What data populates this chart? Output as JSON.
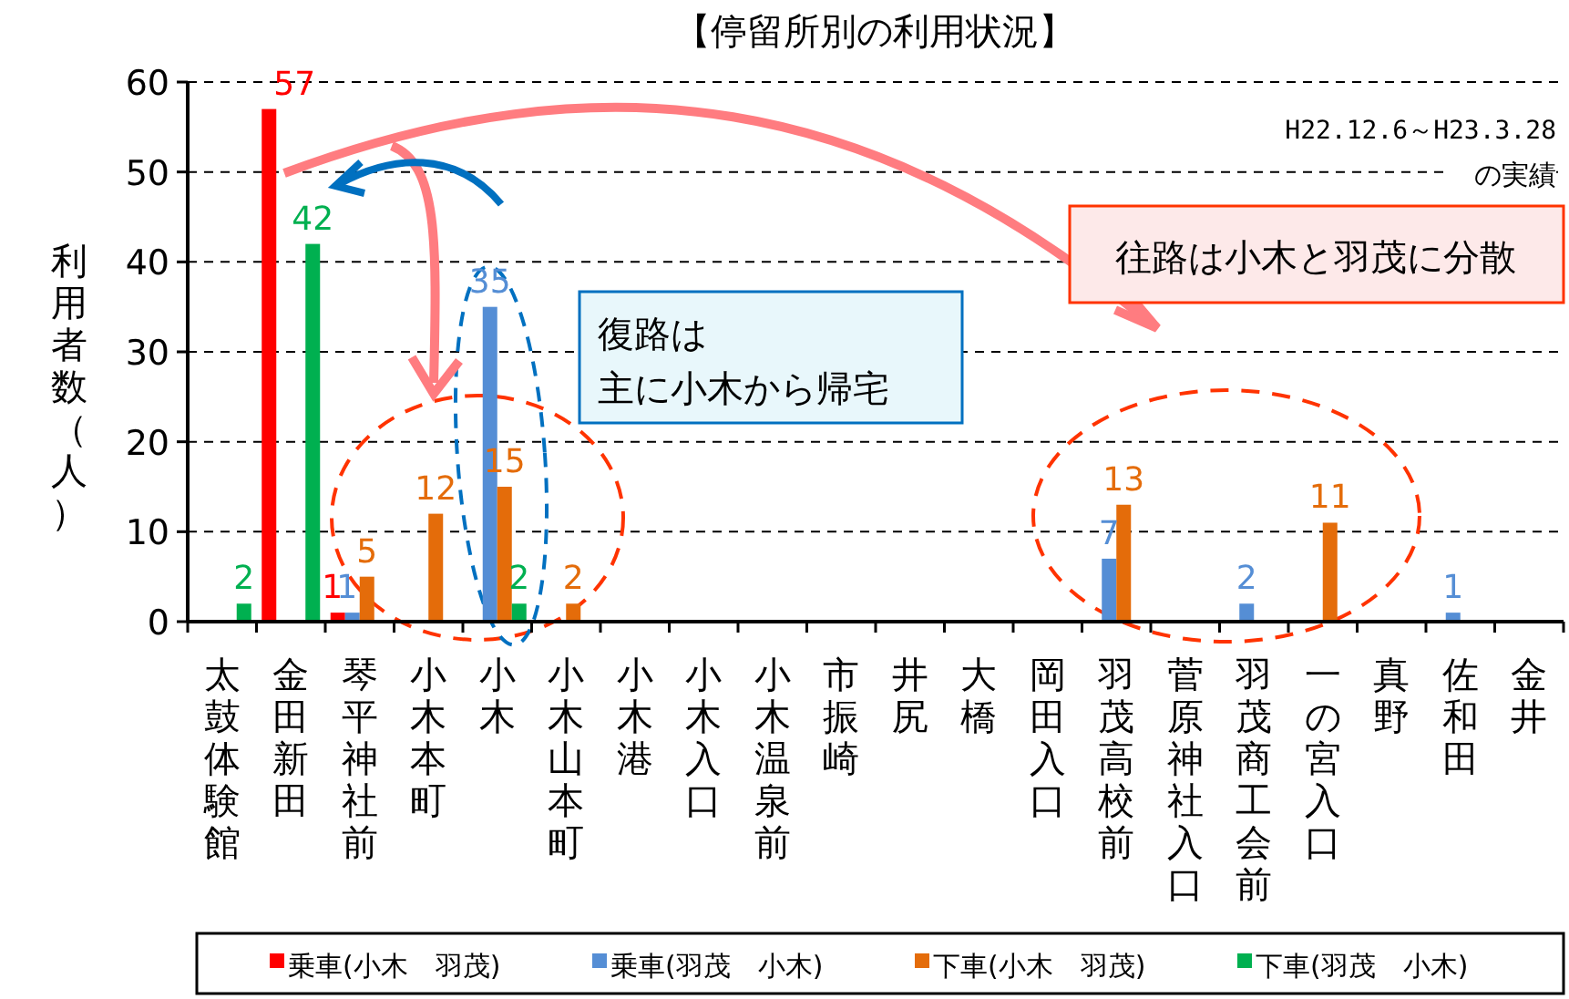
{
  "chart_data": {
    "type": "bar",
    "title": "【停留所別の利用状況】",
    "ylabel": "利用者数（人）",
    "categories": [
      "太鼓体験館",
      "金田新田",
      "琴平神社前",
      "小木本町",
      "小木",
      "小木山本町",
      "小木港",
      "小木入口",
      "小木温泉前",
      "市振崎",
      "井尻",
      "大橋",
      "岡田入口",
      "羽茂高校前",
      "菅原神社入口",
      "羽茂商工会前",
      "一の宮入口",
      "真野",
      "佐和田",
      "金井"
    ],
    "series": [
      {
        "name": "乗車(小木　羽茂)",
        "color": "#ff0000",
        "values": [
          0,
          57,
          1,
          0,
          0,
          0,
          0,
          0,
          0,
          0,
          0,
          0,
          0,
          0,
          0,
          0,
          0,
          0,
          0,
          0
        ],
        "value_labels": [
          null,
          "57",
          "1",
          null,
          null,
          null,
          null,
          null,
          null,
          null,
          null,
          null,
          null,
          null,
          null,
          null,
          null,
          null,
          null,
          null
        ]
      },
      {
        "name": "乗車(羽茂　小木)",
        "color": "#558ed5",
        "values": [
          0,
          0,
          1,
          0,
          35,
          0,
          0,
          0,
          0,
          0,
          0,
          0,
          0,
          7,
          0,
          2,
          0,
          0,
          1,
          0
        ],
        "value_labels": [
          null,
          null,
          "1",
          null,
          "35",
          null,
          null,
          null,
          null,
          null,
          null,
          null,
          null,
          "7",
          null,
          "2",
          null,
          null,
          "1",
          null
        ]
      },
      {
        "name": "下車(小木　羽茂)",
        "color": "#e46c0a",
        "values": [
          0,
          0,
          5,
          12,
          15,
          2,
          0,
          0,
          0,
          0,
          0,
          0,
          0,
          13,
          0,
          0,
          11,
          0,
          0,
          0
        ],
        "value_labels": [
          null,
          null,
          "5",
          "12",
          "15",
          "2",
          null,
          null,
          null,
          null,
          null,
          null,
          null,
          "13",
          null,
          null,
          "11",
          null,
          null,
          null
        ]
      },
      {
        "name": "下車(羽茂　小木)",
        "color": "#00b050",
        "values": [
          2,
          42,
          0,
          0,
          2,
          0,
          0,
          0,
          0,
          0,
          0,
          0,
          0,
          0,
          0,
          0,
          0,
          0,
          0,
          0
        ],
        "value_labels": [
          "2",
          "42",
          null,
          null,
          "2",
          null,
          null,
          null,
          null,
          null,
          null,
          null,
          null,
          null,
          null,
          null,
          null,
          null,
          null,
          null
        ]
      }
    ],
    "ylim": [
      0,
      60
    ],
    "yticks": [
      0,
      10,
      20,
      30,
      40,
      50,
      60
    ],
    "grid": "y",
    "legend": "bottom",
    "annotations": [
      "H22.12.6～H23.3.28",
      "の実績",
      "往路は小木と羽茂に分散",
      "復路は",
      "主に小木から帰宅"
    ]
  }
}
